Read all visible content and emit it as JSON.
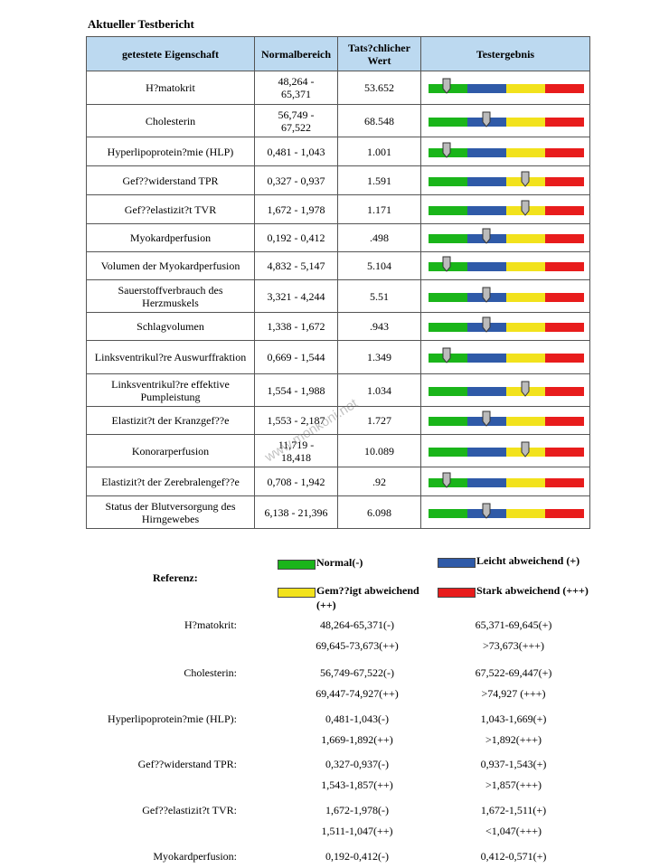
{
  "title": "Aktueller Testbericht",
  "table": {
    "headers": [
      "getestete Eigenschaft",
      "Normalbereich",
      "Tats?chlicher Wert",
      "Testergebnis"
    ],
    "rows": [
      [
        "H?matokrit",
        "48,264 - 65,371",
        "53.652"
      ],
      [
        "Cholesterin",
        "56,749 - 67,522",
        "68.548"
      ],
      [
        "Hyperlipoprotein?mie (HLP)",
        "0,481 - 1,043",
        "1.001"
      ],
      [
        "Gef??widerstand TPR",
        "0,327 - 0,937",
        "1.591"
      ],
      [
        "Gef??elastizit?t TVR",
        "1,672 - 1,978",
        "1.171"
      ],
      [
        "Myokardperfusion",
        "0,192 - 0,412",
        ".498"
      ],
      [
        "Volumen der Myokardperfusion",
        "4,832 - 5,147",
        "5.104"
      ],
      [
        "Sauerstoffverbrauch des Herzmuskels",
        "3,321 - 4,244",
        "5.51"
      ],
      [
        "Schlagvolumen",
        "1,338 - 1,672",
        ".943"
      ],
      [
        "Linksventrikul?re Auswurffraktion",
        "0,669 - 1,544",
        "1.349"
      ],
      [
        "Linksventrikul?re effektive Pumpleistung",
        "1,554 - 1,988",
        "1.034"
      ],
      [
        "Elastizit?t der Kranzgef??e",
        "1,553 - 2,187",
        "1.727"
      ],
      [
        "Konorarperfusion",
        "11,719 - 18,418",
        "10.089"
      ],
      [
        "Elastizit?t der Zerebralengef??e",
        "0,708 - 1,942",
        ".92"
      ],
      [
        "Status der Blutversorgung des Hirngewebes",
        "6,138 - 21,396",
        "6.098"
      ]
    ]
  },
  "watermark": "www.monkoni.net",
  "reference": {
    "heading": "Referenz:",
    "legend": [
      "Normal(-)",
      "Leicht abweichend (+)",
      "Gem??igt abweichend (++)",
      "Stark abweichend (+++)"
    ],
    "rows": [
      {
        "label": "H?matokrit:",
        "normal": "48,264-65,371(-)",
        "leicht": "65,371-69,645(+)",
        "gemaessigt": "69,645-73,673(++)",
        "stark": ">73,673(+++)"
      },
      {
        "label": "Cholesterin:",
        "normal": "56,749-67,522(-)",
        "leicht": "67,522-69,447(+)",
        "gemaessigt": "69,447-74,927(++)",
        "stark": ">74,927 (+++)"
      },
      {
        "label": "Hyperlipoprotein?mie (HLP):",
        "normal": "0,481-1,043(-)",
        "leicht": "1,043-1,669(+)",
        "gemaessigt": "1,669-1,892(++)",
        "stark": ">1,892(+++)"
      },
      {
        "label": "Gef??widerstand TPR:",
        "normal": "0,327-0,937(-)",
        "leicht": "0,937-1,543(+)",
        "gemaessigt": "1,543-1,857(++)",
        "stark": ">1,857(+++)"
      },
      {
        "label": "Gef??elastizit?t TVR:",
        "normal": "1,672-1,978(-)",
        "leicht": "1,672-1,511(+)",
        "gemaessigt": "1,511-1,047(++)",
        "stark": "<1,047(+++)"
      },
      {
        "label": "Myokardperfusion:",
        "normal": "0,192-0,412(-)",
        "leicht": "0,412-0,571(+)"
      }
    ]
  }
}
